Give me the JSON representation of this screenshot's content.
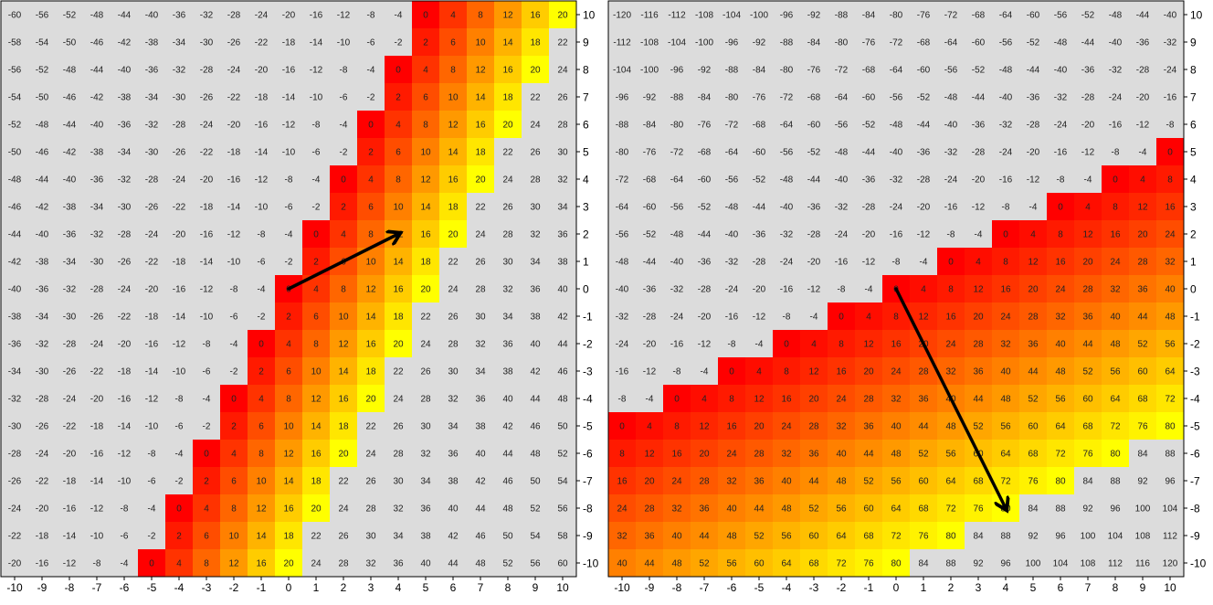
{
  "chart_data": [
    {
      "type": "heatmap",
      "x": [
        -10,
        -9,
        -8,
        -7,
        -6,
        -5,
        -4,
        -3,
        -2,
        -1,
        0,
        1,
        2,
        3,
        4,
        5,
        6,
        7,
        8,
        9,
        10
      ],
      "y": [
        10,
        9,
        8,
        7,
        6,
        5,
        4,
        3,
        2,
        1,
        0,
        -1,
        -2,
        -3,
        -4,
        -5,
        -6,
        -7,
        -8,
        -9,
        -10
      ],
      "cell_value_rule": "4*x - 2*y",
      "highlight_range": [
        0,
        20
      ],
      "xlim": [
        -10,
        10
      ],
      "ylim": [
        -10,
        10
      ],
      "grid": false,
      "arrow": {
        "from": [
          0,
          0
        ],
        "to": [
          4,
          2
        ]
      },
      "colors": {
        "low": "#ff0000",
        "high": "#ffff00",
        "background": "#dcdcdc",
        "arrow": "#000000"
      }
    },
    {
      "type": "heatmap",
      "x": [
        -10,
        -9,
        -8,
        -7,
        -6,
        -5,
        -4,
        -3,
        -2,
        -1,
        0,
        1,
        2,
        3,
        4,
        5,
        6,
        7,
        8,
        9,
        10
      ],
      "y": [
        10,
        9,
        8,
        7,
        6,
        5,
        4,
        3,
        2,
        1,
        0,
        -1,
        -2,
        -3,
        -4,
        -5,
        -6,
        -7,
        -8,
        -9,
        -10
      ],
      "cell_value_rule": "4*x - 8*y",
      "highlight_range": [
        0,
        80
      ],
      "xlim": [
        -10,
        10
      ],
      "ylim": [
        -10,
        10
      ],
      "grid": false,
      "arrow": {
        "from": [
          0,
          0
        ],
        "to": [
          4,
          -8
        ]
      },
      "colors": {
        "low": "#ff0000",
        "high": "#ffff00",
        "background": "#dcdcdc",
        "arrow": "#000000"
      }
    }
  ]
}
